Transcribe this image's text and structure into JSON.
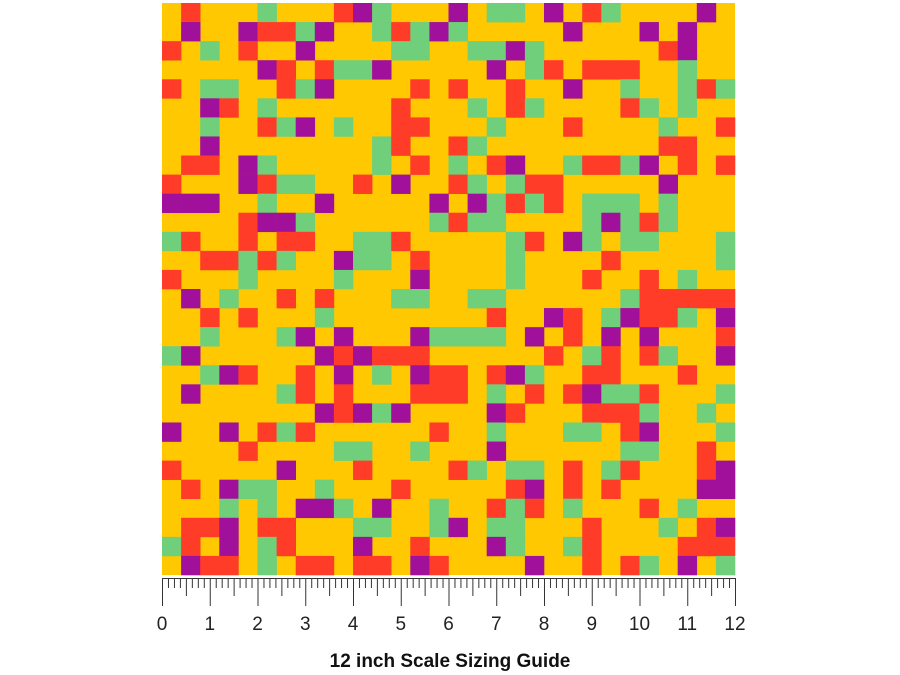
{
  "ruler": {
    "labels": [
      "0",
      "1",
      "2",
      "3",
      "4",
      "5",
      "6",
      "7",
      "8",
      "9",
      "10",
      "11",
      "12"
    ]
  },
  "caption": "12 inch Scale Sizing Guide"
}
